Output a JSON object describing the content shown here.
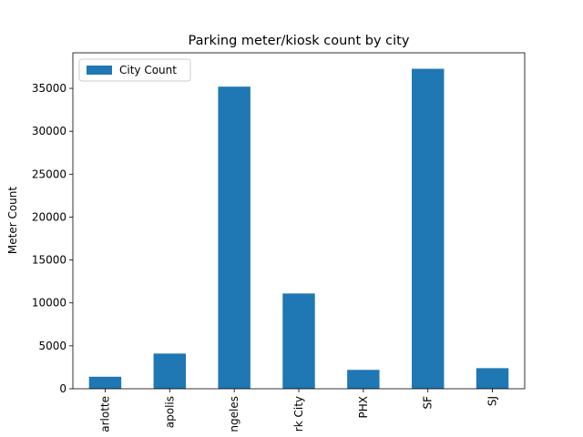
{
  "chart_data": {
    "type": "bar",
    "title": "Parking meter/kiosk count by city",
    "ylabel": "Meter Count",
    "categories": [
      "arlotte",
      "apolis",
      "ngeles",
      "rk City",
      "PHX",
      "SF",
      "SJ"
    ],
    "series": [
      {
        "name": "City Count",
        "color": "#1f77b4",
        "values": [
          1400,
          4100,
          35200,
          11100,
          2200,
          37280,
          2400
        ]
      }
    ],
    "ylim": [
      0,
      39144
    ],
    "yticks": [
      0,
      5000,
      10000,
      15000,
      20000,
      25000,
      30000,
      35000
    ],
    "legend": "upper-left"
  }
}
